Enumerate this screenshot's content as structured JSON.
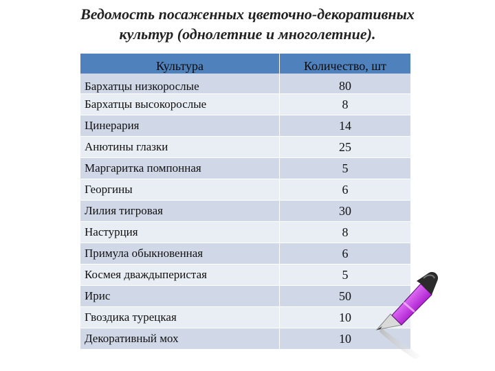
{
  "title": {
    "line1": "Ведомость посаженных цветочно-декоративных",
    "line2": "культур (однолетние и многолетние)."
  },
  "table": {
    "headers": [
      "Культура",
      "Количество, шт"
    ],
    "rows": [
      {
        "name": "Бархатцы низкорослые",
        "qty": "80"
      },
      {
        "name": "Бархатцы высокорослые",
        "qty": "8"
      },
      {
        "name": "Цинерария",
        "qty": "14"
      },
      {
        "name": "Анютины глазки",
        "qty": "25"
      },
      {
        "name": "Маргаритка помпонная",
        "qty": "5"
      },
      {
        "name": "Георгины",
        "qty": "6"
      },
      {
        "name": "Лилия тигровая",
        "qty": "30"
      },
      {
        "name": "Настурция",
        "qty": "8"
      },
      {
        "name": "Примула обыкновенная",
        "qty": "6"
      },
      {
        "name": "Космея дваждыперистая",
        "qty": "5"
      },
      {
        "name": "Ирис",
        "qty": "50"
      },
      {
        "name": "Гвоздика турецкая",
        "qty": "10"
      },
      {
        "name": "Декоративный мох",
        "qty": "10"
      }
    ]
  },
  "decoration": {
    "icon": "marker-pen-icon",
    "color": "#a020c0"
  }
}
